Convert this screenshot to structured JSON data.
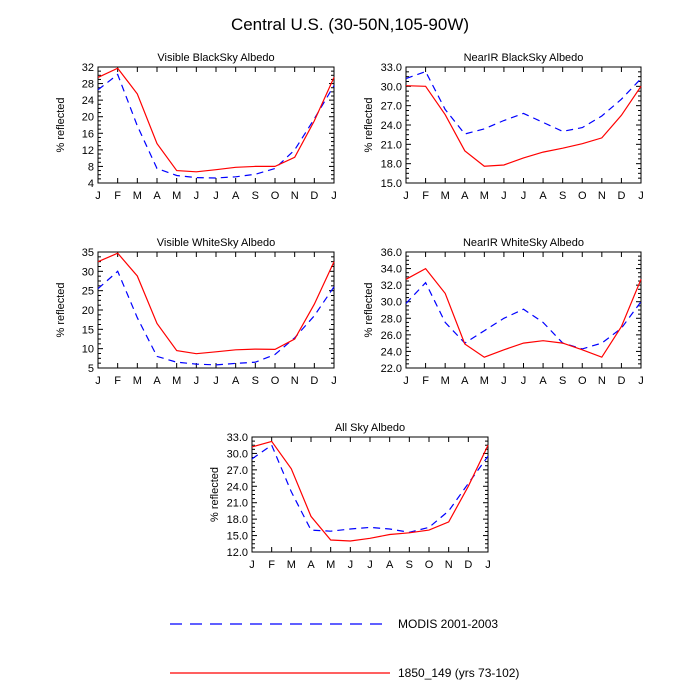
{
  "figure": {
    "title": "Central U.S. (30-50N,105-90W)"
  },
  "legend": [
    {
      "name": "MODIS 2001-2003",
      "color": "#0000ff",
      "dash": true
    },
    {
      "name": "1850_149 (yrs 73-102)",
      "color": "#ff0000",
      "dash": false
    }
  ],
  "chart_data": [
    {
      "type": "line",
      "title": "Visible BlackSky Albedo",
      "ylabel": "% reflected",
      "categories": [
        "J",
        "F",
        "M",
        "A",
        "M",
        "J",
        "J",
        "A",
        "S",
        "O",
        "N",
        "D",
        "J"
      ],
      "yticks": [
        "4",
        "8",
        "12",
        "16",
        "20",
        "24",
        "28",
        "32"
      ],
      "ylim": [
        4,
        32
      ],
      "series": [
        {
          "name": "MODIS 2001-2003",
          "values": [
            26.5,
            30.2,
            17.8,
            7.5,
            5.8,
            5.3,
            5.2,
            5.5,
            6.1,
            7.5,
            12.0,
            19.5,
            27.5
          ]
        },
        {
          "name": "1850_149 (yrs 73-102)",
          "values": [
            29.5,
            31.7,
            25.5,
            13.5,
            7.0,
            6.7,
            7.2,
            7.8,
            8.0,
            8.0,
            10.2,
            19.0,
            29.5
          ]
        }
      ]
    },
    {
      "type": "line",
      "title": "NearIR BlackSky Albedo",
      "ylabel": "% reflected",
      "categories": [
        "J",
        "F",
        "M",
        "A",
        "M",
        "J",
        "J",
        "A",
        "S",
        "O",
        "N",
        "D",
        "J"
      ],
      "yticks": [
        "15.0",
        "18.0",
        "21.0",
        "24.0",
        "27.0",
        "30.0",
        "33.0"
      ],
      "ylim": [
        15,
        33
      ],
      "series": [
        {
          "name": "MODIS 2001-2003",
          "values": [
            31.2,
            32.3,
            26.4,
            22.6,
            23.4,
            24.7,
            25.8,
            24.4,
            23.0,
            23.6,
            25.4,
            28.0,
            31.2
          ]
        },
        {
          "name": "1850_149 (yrs 73-102)",
          "values": [
            30.1,
            30.0,
            25.6,
            20.0,
            17.6,
            17.8,
            18.9,
            19.8,
            20.4,
            21.1,
            22.0,
            25.5,
            30.0
          ]
        }
      ]
    },
    {
      "type": "line",
      "title": "Visible WhiteSky Albedo",
      "ylabel": "% reflected",
      "categories": [
        "J",
        "F",
        "M",
        "A",
        "M",
        "J",
        "J",
        "A",
        "S",
        "O",
        "N",
        "D",
        "J"
      ],
      "yticks": [
        "5",
        "10",
        "15",
        "20",
        "25",
        "30",
        "35"
      ],
      "ylim": [
        5,
        35
      ],
      "series": [
        {
          "name": "MODIS 2001-2003",
          "values": [
            25.5,
            30.0,
            18.0,
            8.0,
            6.5,
            6.0,
            5.8,
            6.2,
            6.5,
            8.5,
            12.8,
            18.5,
            26.0
          ]
        },
        {
          "name": "1850_149 (yrs 73-102)",
          "values": [
            32.5,
            34.7,
            28.8,
            16.5,
            9.5,
            8.7,
            9.2,
            9.7,
            9.9,
            9.8,
            12.5,
            21.5,
            32.5
          ]
        }
      ]
    },
    {
      "type": "line",
      "title": "NearIR WhiteSky Albedo",
      "ylabel": "% reflected",
      "categories": [
        "J",
        "F",
        "M",
        "A",
        "M",
        "J",
        "J",
        "A",
        "S",
        "O",
        "N",
        "D",
        "J"
      ],
      "yticks": [
        "22.0",
        "24.0",
        "26.0",
        "28.0",
        "30.0",
        "32.0",
        "34.0",
        "36.0"
      ],
      "ylim": [
        22,
        36
      ],
      "series": [
        {
          "name": "MODIS 2001-2003",
          "values": [
            29.8,
            32.3,
            27.5,
            25.0,
            26.5,
            28.0,
            29.1,
            27.5,
            25.0,
            24.3,
            25.0,
            26.8,
            30.0
          ]
        },
        {
          "name": "1850_149 (yrs 73-102)",
          "values": [
            32.7,
            34.0,
            31.0,
            24.9,
            23.3,
            24.2,
            25.0,
            25.3,
            25.0,
            24.2,
            23.3,
            27.0,
            32.7
          ]
        }
      ]
    },
    {
      "type": "line",
      "title": "All Sky Albedo",
      "ylabel": "% reflected",
      "categories": [
        "J",
        "F",
        "M",
        "A",
        "M",
        "J",
        "J",
        "A",
        "S",
        "O",
        "N",
        "D",
        "J"
      ],
      "yticks": [
        "12.0",
        "15.0",
        "18.0",
        "21.0",
        "24.0",
        "27.0",
        "30.0",
        "33.0"
      ],
      "ylim": [
        12,
        33
      ],
      "series": [
        {
          "name": "MODIS 2001-2003",
          "values": [
            29.0,
            31.5,
            23.0,
            16.0,
            15.8,
            16.2,
            16.5,
            16.2,
            15.6,
            16.5,
            19.5,
            24.5,
            29.5
          ]
        },
        {
          "name": "1850_149 (yrs 73-102)",
          "values": [
            31.2,
            32.2,
            27.2,
            18.5,
            14.2,
            14.0,
            14.5,
            15.2,
            15.5,
            16.0,
            17.5,
            24.0,
            31.5
          ]
        }
      ]
    }
  ]
}
